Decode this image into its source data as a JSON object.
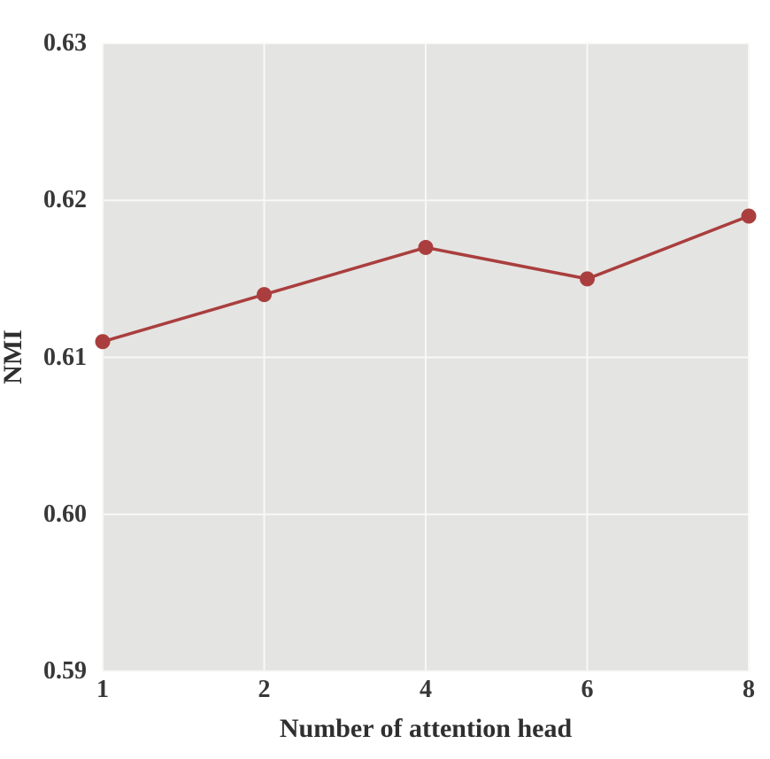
{
  "chart_data": {
    "type": "line",
    "title": "",
    "x": [
      1,
      2,
      4,
      6,
      8
    ],
    "x_labels": [
      "1",
      "2",
      "4",
      "6",
      "8"
    ],
    "series": [
      {
        "name": "NMI",
        "values": [
          0.611,
          0.614,
          0.617,
          0.615,
          0.619
        ]
      }
    ],
    "xlabel": "Number of attention head",
    "ylabel": "NMI",
    "ylim": [
      0.59,
      0.63
    ],
    "yticks": [
      0.59,
      0.6,
      0.61,
      0.62,
      0.63
    ],
    "ytick_labels": [
      "0.59",
      "0.60",
      "0.61",
      "0.62",
      "0.63"
    ],
    "x_scale": "categorical-evenly-spaced",
    "grid": true,
    "legend": "none",
    "marker": "circle",
    "colors": {
      "line": "#aa3e3e",
      "marker": "#aa3e3e",
      "plot_background": "#e4e4e2",
      "gridline": "#f8f8f6",
      "tick_text": "#383838",
      "figure_background": "#ffffff"
    }
  }
}
